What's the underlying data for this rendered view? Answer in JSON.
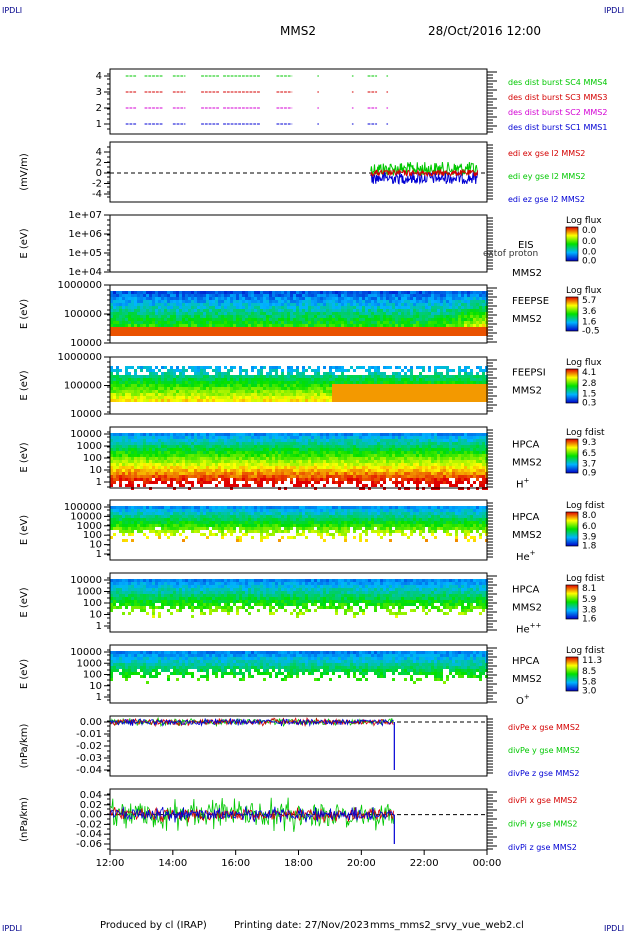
{
  "corner_tag": "IPDLI",
  "header": {
    "mission": "MMS2",
    "datetime": "28/Oct/2016 12:00"
  },
  "footer": {
    "produced_by": "Produced by cl (IRAP)",
    "printing_date": "Printing date: 27/Nov/2023",
    "file": "mms_mms2_srvy_vue_web2.cl"
  },
  "colors": {
    "red": "#d40000",
    "magenta": "#d400d4",
    "green": "#00c800",
    "blue": "#0000d4",
    "panel_border": "#000000"
  },
  "chart_data": [
    {
      "id": "burst",
      "type": "scatter",
      "y_ticks": [
        "4",
        "3",
        "2",
        "1"
      ],
      "legend": [
        {
          "label": "des dist burst SC1 MMS1",
          "color": "#0000d4"
        },
        {
          "label": "des dist burst SC2 MMS2",
          "color": "#d400d4"
        },
        {
          "label": "des dist burst SC3 MMS3",
          "color": "#d40000"
        },
        {
          "label": "des dist burst SC4 MMS4",
          "color": "#00c800"
        }
      ],
      "segments_hours": [
        [
          12.5,
          12.85
        ],
        [
          13.1,
          13.7
        ],
        [
          14.0,
          14.4
        ],
        [
          14.9,
          15.5
        ],
        [
          15.6,
          16.8
        ],
        [
          17.3,
          17.8
        ],
        [
          18.6,
          18.65
        ],
        [
          19.7,
          19.75
        ],
        [
          20.2,
          20.5
        ],
        [
          20.8,
          20.85
        ]
      ]
    },
    {
      "id": "edi",
      "type": "line",
      "ylabel": "(mV/m)",
      "y_ticks": [
        "4",
        "2",
        "0",
        "-2",
        "-4"
      ],
      "legend": [
        {
          "label": "edi ex gse l2 MMS2",
          "color": "#d40000"
        },
        {
          "label": "edi ey gse l2 MMS2",
          "color": "#00c800"
        },
        {
          "label": "edi ez gse l2 MMS2",
          "color": "#0000d4"
        }
      ],
      "active_range_hours": [
        20.3,
        23.7
      ]
    },
    {
      "id": "eis",
      "type": "heatmap",
      "ylabel": "E (eV)",
      "y_ticks": [
        "1e+07",
        "1e+06",
        "1e+05",
        "1e+04"
      ],
      "labels": [
        "EIS",
        "MMS2"
      ],
      "overlay_text": "extof proton",
      "colorbar": {
        "title": "Log flux",
        "ticks": [
          "0.0",
          "0.0",
          "0.0",
          "0.0"
        ]
      }
    },
    {
      "id": "feepse",
      "type": "heatmap",
      "ylabel": "E (eV)",
      "y_ticks": [
        "1000000",
        "100000",
        "10000"
      ],
      "labels": [
        "FEEPSE",
        "MMS2"
      ],
      "colorbar": {
        "title": "Log flux",
        "ticks": [
          "5.7",
          "3.6",
          "1.6",
          "-0.5"
        ]
      }
    },
    {
      "id": "feepsi",
      "type": "heatmap",
      "ylabel": "E (eV)",
      "y_ticks": [
        "1000000",
        "100000",
        "10000"
      ],
      "labels": [
        "FEEPSI",
        "MMS2"
      ],
      "colorbar": {
        "title": "Log flux",
        "ticks": [
          "4.1",
          "2.8",
          "1.5",
          "0.3"
        ]
      }
    },
    {
      "id": "hpca_h",
      "type": "heatmap",
      "ylabel": "E (eV)",
      "y_ticks": [
        "10000",
        "1000",
        "100",
        "10",
        "1"
      ],
      "labels": [
        "HPCA",
        "MMS2"
      ],
      "species": "H",
      "charge": "+",
      "colorbar": {
        "title": "Log fdist",
        "ticks": [
          "9.3",
          "6.5",
          "3.7",
          "0.9"
        ]
      }
    },
    {
      "id": "hpca_he",
      "type": "heatmap",
      "ylabel": "E (eV)",
      "y_ticks": [
        "100000",
        "10000",
        "1000",
        "100",
        "10",
        "1"
      ],
      "labels": [
        "HPCA",
        "MMS2"
      ],
      "species": "He",
      "charge": "+",
      "colorbar": {
        "title": "Log fdist",
        "ticks": [
          "8.0",
          "6.0",
          "3.9",
          "1.8"
        ]
      }
    },
    {
      "id": "hpca_he2",
      "type": "heatmap",
      "ylabel": "E (eV)",
      "y_ticks": [
        "10000",
        "1000",
        "100",
        "10",
        "1"
      ],
      "labels": [
        "HPCA",
        "MMS2"
      ],
      "species": "He",
      "charge": "++",
      "colorbar": {
        "title": "Log fdist",
        "ticks": [
          "8.1",
          "5.9",
          "3.8",
          "1.6"
        ]
      }
    },
    {
      "id": "hpca_o",
      "type": "heatmap",
      "ylabel": "E (eV)",
      "y_ticks": [
        "10000",
        "1000",
        "100",
        "10",
        "1"
      ],
      "labels": [
        "HPCA",
        "MMS2"
      ],
      "species": "O",
      "charge": "+",
      "colorbar": {
        "title": "Log fdist",
        "ticks": [
          "11.3",
          "8.5",
          "5.8",
          "3.0"
        ]
      }
    },
    {
      "id": "divpe",
      "type": "line",
      "ylabel": "(nPa/km)",
      "y_ticks": [
        "0.00",
        "-0.01",
        "-0.02",
        "-0.03",
        "-0.04"
      ],
      "legend": [
        {
          "label": "divPe x gse MMS2",
          "color": "#d40000"
        },
        {
          "label": "divPe y gse MMS2",
          "color": "#00c800"
        },
        {
          "label": "divPe z gse MMS2",
          "color": "#0000d4"
        }
      ],
      "spike": {
        "x_hour": 21.05,
        "y": -0.04
      }
    },
    {
      "id": "divpi",
      "type": "line",
      "ylabel": "(nPa/km)",
      "y_ticks": [
        "0.04",
        "0.02",
        "0.00",
        "-0.02",
        "-0.04",
        "-0.06"
      ],
      "legend": [
        {
          "label": "divPi x gse MMS2",
          "color": "#d40000"
        },
        {
          "label": "divPi y gse MMS2",
          "color": "#00c800"
        },
        {
          "label": "divPi z gse MMS2",
          "color": "#0000d4"
        }
      ],
      "spike": {
        "x_hour": 21.05,
        "y": -0.06
      }
    }
  ],
  "x_axis": {
    "ticks": [
      "12:00",
      "14:00",
      "16:00",
      "18:00",
      "20:00",
      "22:00",
      "00:00"
    ],
    "range_hours": [
      12,
      24
    ]
  }
}
